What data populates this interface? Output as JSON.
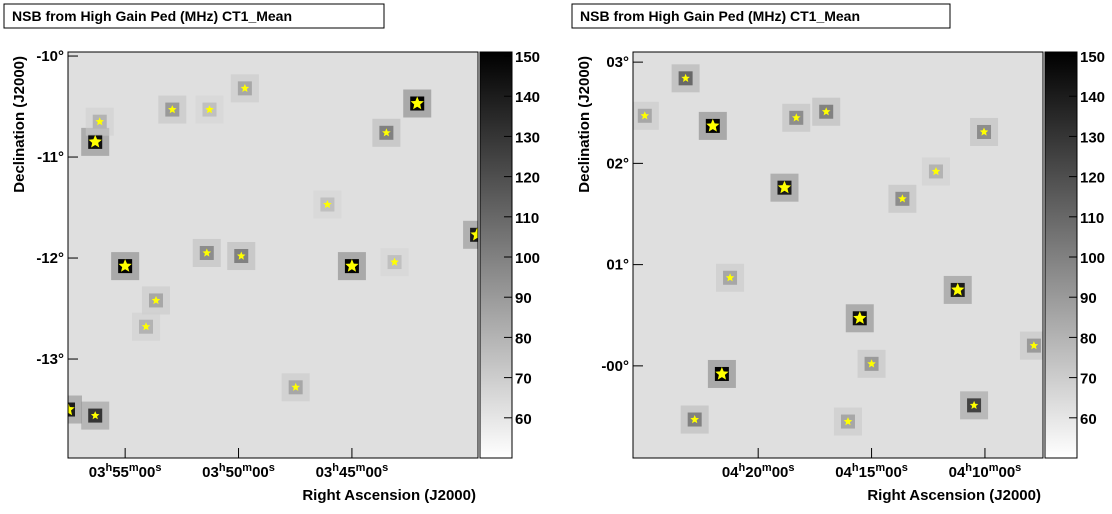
{
  "chart_data": [
    {
      "type": "skymap",
      "title": "NSB from High Gain Ped (MHz) CT1_Mean",
      "xlabel": "Right Ascension (J2000)",
      "ylabel": "Declination (J2000)",
      "xlim": [
        59.38,
        54.86
      ],
      "ylim": [
        -13.98,
        -9.96
      ],
      "xticks": [
        {
          "value": 58.75,
          "label": "03h55m00s"
        },
        {
          "value": 57.5,
          "label": "03h50m00s"
        },
        {
          "value": 56.25,
          "label": "03h45m00s"
        }
      ],
      "yticks": [
        {
          "value": -10,
          "label": "-10°"
        },
        {
          "value": -11,
          "label": "-11°"
        },
        {
          "value": -12,
          "label": "-12°"
        },
        {
          "value": -13,
          "label": "-13°"
        }
      ],
      "zlim": [
        50,
        151
      ],
      "zticks": [
        60,
        70,
        80,
        90,
        100,
        110,
        120,
        130,
        140,
        150
      ],
      "x": [
        55.53,
        59.08,
        58.75,
        56.25,
        54.87,
        59.38,
        59.08,
        55.87,
        57.47,
        57.85,
        58.23,
        57.43,
        59.03,
        58.41,
        58.52,
        56.87,
        56.52,
        57.82,
        55.78
      ],
      "y": [
        -10.47,
        -10.85,
        -12.08,
        -12.08,
        -11.77,
        -13.5,
        -13.56,
        -10.76,
        -11.98,
        -11.95,
        -10.53,
        -10.32,
        -10.65,
        -12.42,
        -12.68,
        -13.28,
        -11.47,
        -10.53,
        -12.04
      ],
      "values": [
        150,
        145,
        150,
        150,
        140,
        140,
        130,
        100,
        100,
        95,
        90,
        85,
        80,
        85,
        80,
        85,
        75,
        75,
        75
      ]
    },
    {
      "type": "skymap",
      "title": "NSB from High Gain Ped (MHz) CT1_Mean",
      "xlabel": "Right Ascension (J2000)",
      "ylabel": "Declination (J2000)",
      "xlim": [
        66.38,
        61.86
      ],
      "ylim": [
        -0.91,
        3.1
      ],
      "xticks": [
        {
          "value": 65,
          "label": "04h20m00s"
        },
        {
          "value": 63.75,
          "label": "04h15m00s"
        },
        {
          "value": 62.5,
          "label": "04h10m00s"
        }
      ],
      "yticks": [
        {
          "value": 3,
          "label": "03°"
        },
        {
          "value": 2,
          "label": "02°"
        },
        {
          "value": 1,
          "label": "01°"
        },
        {
          "value": 0,
          "label": "-00°"
        }
      ],
      "zlim": [
        50,
        151
      ],
      "zticks": [
        60,
        70,
        80,
        90,
        100,
        110,
        120,
        130,
        140,
        150
      ],
      "x": [
        65.4,
        65.5,
        64.71,
        63.88,
        62.8,
        62.62,
        65.8,
        65.7,
        64.25,
        64.58,
        63.41,
        62.51,
        63.75,
        61.96,
        66.25,
        65.31,
        64.01,
        63.04
      ],
      "y": [
        -0.08,
        2.37,
        1.76,
        0.47,
        0.75,
        -0.39,
        2.84,
        -0.53,
        2.51,
        2.45,
        1.65,
        2.31,
        0.02,
        0.2,
        2.47,
        0.87,
        -0.55,
        1.92
      ],
      "values": [
        150,
        150,
        140,
        145,
        140,
        125,
        110,
        100,
        100,
        95,
        95,
        95,
        90,
        90,
        85,
        85,
        85,
        80
      ]
    }
  ]
}
